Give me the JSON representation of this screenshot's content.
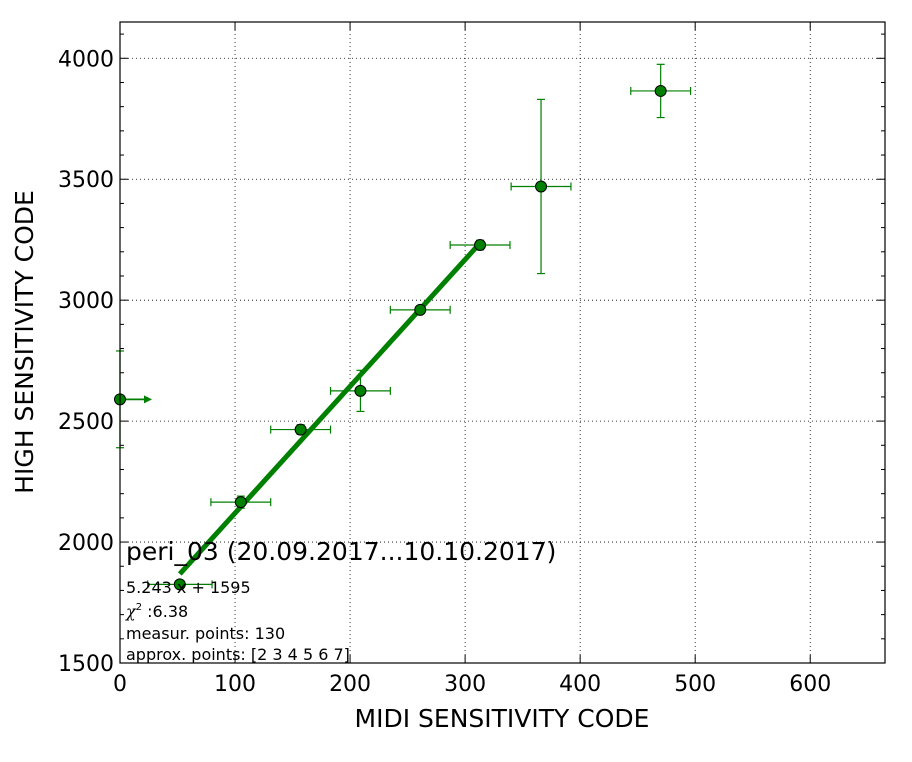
{
  "chart_data": {
    "type": "scatter",
    "title": "",
    "xlabel": "MIDI SENSITIVITY CODE",
    "ylabel": "HIGH SENSITIVITY CODE",
    "xlim": [
      0,
      665
    ],
    "ylim": [
      1500,
      4150
    ],
    "xticks": [
      0,
      100,
      200,
      300,
      400,
      500,
      600
    ],
    "yticks": [
      1500,
      2000,
      2500,
      3000,
      3500,
      4000
    ],
    "grid": true,
    "color": "#008000",
    "series": [
      {
        "kind": "points-with-errorbars",
        "points": [
          {
            "x": 0,
            "y": 2590,
            "xerr": 0,
            "yerr": 200,
            "arrow": "right"
          },
          {
            "x": 52,
            "y": 1825,
            "xerr": 28,
            "yerr": 10
          },
          {
            "x": 105,
            "y": 2165,
            "xerr": 26,
            "yerr": 25
          },
          {
            "x": 157,
            "y": 2465,
            "xerr": 26,
            "yerr": 20
          },
          {
            "x": 209,
            "y": 2625,
            "xerr": 26,
            "yerr": 85
          },
          {
            "x": 261,
            "y": 2960,
            "xerr": 26,
            "yerr": 15
          },
          {
            "x": 313,
            "y": 3228,
            "xerr": 26,
            "yerr": 20
          },
          {
            "x": 366,
            "y": 3470,
            "xerr": 26,
            "yerr": 360
          },
          {
            "x": 470,
            "y": 3865,
            "xerr": 26,
            "yerr": 110
          }
        ]
      },
      {
        "kind": "fit-line",
        "x": [
          52,
          313
        ],
        "y": [
          1868,
          3236
        ]
      }
    ],
    "annotations": {
      "title": "peri_03 (20.09.2017...10.10.2017)",
      "fit": "5.243 x + 1595",
      "chi2_symbol": "χ",
      "chi2_exp": "2",
      "chi2_value": " :6.38",
      "points": "measur. points: 130",
      "approx": "approx. points: [2 3 4 5 6 7]"
    }
  }
}
